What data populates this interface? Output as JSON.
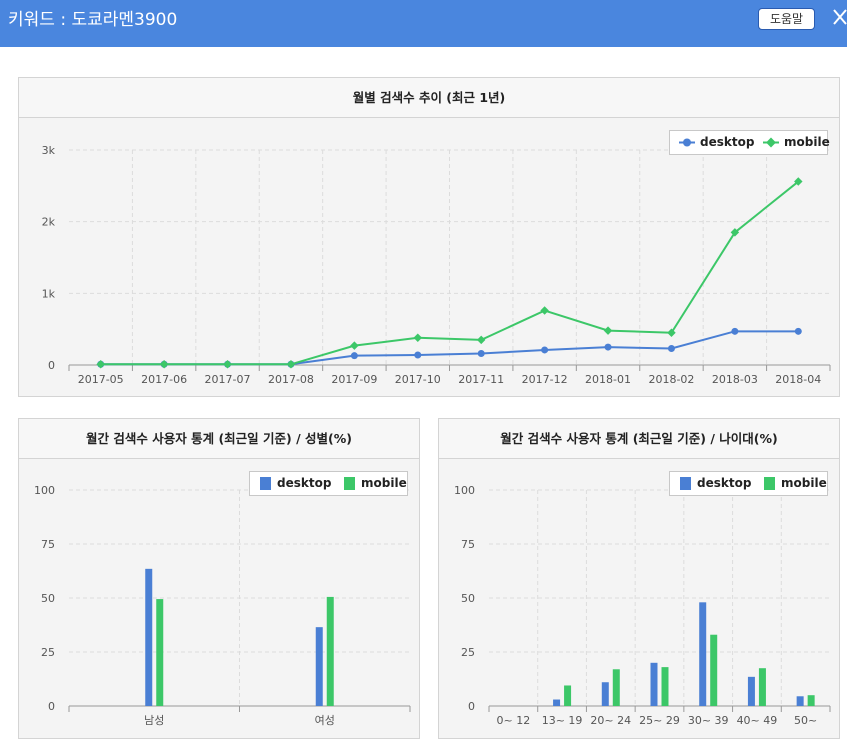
{
  "header": {
    "title": "키워드 : 도쿄라멘3900",
    "help_label": "도움말"
  },
  "colors": {
    "header_bg": "#4a86de",
    "desktop": "#4a7fd4",
    "mobile": "#3cc768"
  },
  "legend": {
    "desktop": "desktop",
    "mobile": "mobile"
  },
  "chart_data": [
    {
      "type": "line",
      "title": "월별 검색수 추이 (최근 1년)",
      "categories": [
        "2017-05",
        "2017-06",
        "2017-07",
        "2017-08",
        "2017-09",
        "2017-10",
        "2017-11",
        "2017-12",
        "2018-01",
        "2018-02",
        "2018-03",
        "2018-04"
      ],
      "series": [
        {
          "name": "desktop",
          "values": [
            10,
            10,
            10,
            10,
            130,
            140,
            160,
            210,
            250,
            230,
            470,
            470
          ]
        },
        {
          "name": "mobile",
          "values": [
            10,
            10,
            10,
            10,
            270,
            380,
            350,
            760,
            480,
            450,
            1850,
            2560
          ]
        }
      ],
      "yticks": [
        "0",
        "1k",
        "2k",
        "3k"
      ],
      "ylim": [
        0,
        3000
      ],
      "grid": true,
      "legend_position": "top-right"
    },
    {
      "type": "bar",
      "title": "월간 검색수 사용자 통계 (최근일 기준) / 성별(%)",
      "categories": [
        "남성",
        "여성"
      ],
      "series": [
        {
          "name": "desktop",
          "values": [
            63.5,
            36.5
          ]
        },
        {
          "name": "mobile",
          "values": [
            49.5,
            50.5
          ]
        }
      ],
      "yticks": [
        "0",
        "25",
        "50",
        "75",
        "100"
      ],
      "ylim": [
        0,
        100
      ],
      "grid": true,
      "legend_position": "top-right"
    },
    {
      "type": "bar",
      "title": "월간 검색수 사용자 통계 (최근일 기준) / 나이대(%)",
      "categories": [
        "0~ 12",
        "13~ 19",
        "20~ 24",
        "25~ 29",
        "30~ 39",
        "40~ 49",
        "50~"
      ],
      "series": [
        {
          "name": "desktop",
          "values": [
            0,
            3,
            11,
            20,
            48,
            13.5,
            4.5
          ]
        },
        {
          "name": "mobile",
          "values": [
            0,
            9.5,
            17,
            18,
            33,
            17.5,
            5
          ]
        }
      ],
      "yticks": [
        "0",
        "25",
        "50",
        "75",
        "100"
      ],
      "ylim": [
        0,
        100
      ],
      "grid": true,
      "legend_position": "top-right"
    }
  ]
}
